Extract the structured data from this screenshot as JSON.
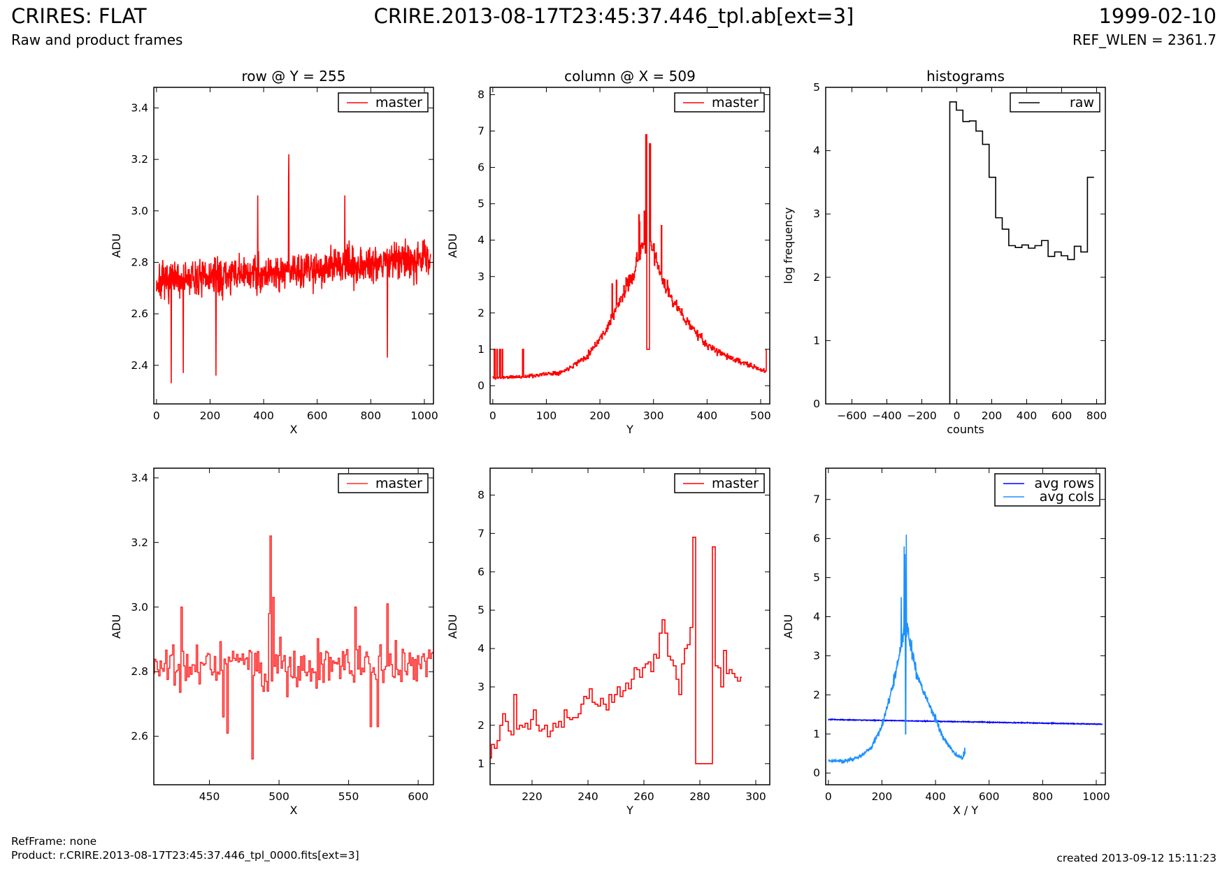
{
  "header": {
    "left_title": "CRIRES: FLAT",
    "left_subtitle": "Raw and product frames",
    "center_title": "CRIRE.2013-08-17T23:45:37.446_tpl.ab[ext=3]",
    "right_title": "1999-02-10",
    "right_subtitle": "REF_WLEN = 2361.7"
  },
  "footer": {
    "refframe": "RefFrame: none",
    "product": "Product: r.CRIRE.2013-08-17T23:45:37.446_tpl_0000.fits[ext=3]",
    "created": "created 2013-09-12 15:11:23"
  },
  "colors": {
    "red": "#ff0000",
    "black": "#000000",
    "blue": "#0000ff",
    "light_blue": "#1e90ff"
  },
  "chart_data": [
    {
      "id": "row-top",
      "type": "line",
      "title": "row @ Y = 255",
      "xlabel": "X",
      "ylabel": "ADU",
      "xlim": [
        -10,
        1034
      ],
      "ylim": [
        2.25,
        3.48
      ],
      "xticks": [
        0,
        200,
        400,
        600,
        800,
        1000
      ],
      "yticks": [
        2.4,
        2.6,
        2.8,
        3.0,
        3.2,
        3.4
      ],
      "ytick_decimals": 1,
      "legend_position": "top-right",
      "series": [
        {
          "name": "master",
          "color": "#ff0000",
          "width": 1.6,
          "step": false,
          "generator": {
            "x_start": 0,
            "x_end": 1023,
            "n": 1024,
            "base": 2.72,
            "trend": 0.1,
            "noise": 0.11,
            "seed": 7,
            "spikes": [
              [
                494,
                3.22
              ],
              [
                493,
                3.13
              ],
              [
                55,
                2.33
              ],
              [
                222,
                2.36
              ],
              [
                100,
                2.37
              ],
              [
                862,
                2.43
              ],
              [
                378,
                3.06
              ],
              [
                703,
                3.06
              ]
            ]
          }
        }
      ]
    },
    {
      "id": "col-top",
      "type": "line",
      "title": "column @ X = 509",
      "xlabel": "Y",
      "ylabel": "ADU",
      "xlim": [
        -5,
        517
      ],
      "ylim": [
        -0.5,
        8.2
      ],
      "xticks": [
        0,
        100,
        200,
        300,
        400,
        500
      ],
      "yticks": [
        0,
        1,
        2,
        3,
        4,
        5,
        6,
        7,
        8
      ],
      "ytick_decimals": 0,
      "legend_position": "top-right",
      "series": [
        {
          "name": "master",
          "color": "#ff0000",
          "width": 1.6,
          "step": true,
          "profile": [
            [
              0,
              0.22
            ],
            [
              60,
              0.25
            ],
            [
              130,
              0.38
            ],
            [
              175,
              0.8
            ],
            [
              210,
              1.5
            ],
            [
              240,
              2.4
            ],
            [
              265,
              3.2
            ],
            [
              280,
              3.9
            ],
            [
              290,
              3.7
            ],
            [
              300,
              3.6
            ],
            [
              320,
              2.8
            ],
            [
              350,
              2.0
            ],
            [
              400,
              1.1
            ],
            [
              450,
              0.72
            ],
            [
              511,
              0.38
            ]
          ],
          "generator": {
            "x_start": 0,
            "x_end": 511,
            "n": 512,
            "noise_rel": 0.1,
            "noise_abs": 0.05,
            "seed": 11,
            "spikes": [
              [
                3,
                1.0
              ],
              [
                4,
                1.0
              ],
              [
                8,
                1.0
              ],
              [
                13,
                1.0
              ],
              [
                14,
                1.0
              ],
              [
                18,
                1.0
              ],
              [
                56,
                1.0
              ],
              [
                57,
                1.0
              ],
              [
                223,
                2.8
              ],
              [
                231,
                2.9
              ],
              [
                273,
                4.7
              ],
              [
                274,
                4.5
              ],
              [
                283,
                4.8
              ],
              [
                286,
                6.9
              ],
              [
                287,
                6.9
              ],
              [
                288,
                1.0
              ],
              [
                289,
                1.0
              ],
              [
                290,
                1.0
              ],
              [
                291,
                1.0
              ],
              [
                292,
                1.0
              ],
              [
                293,
                6.65
              ],
              [
                294,
                6.65
              ],
              [
                300,
                3.9
              ],
              [
                301,
                3.9
              ],
              [
                315,
                4.4
              ],
              [
                511,
                1.0
              ]
            ]
          }
        }
      ]
    },
    {
      "id": "hist-top",
      "type": "histogram",
      "title": "histograms",
      "xlabel": "counts",
      "ylabel": "log frequency",
      "xlim": [
        -750,
        850
      ],
      "ylim": [
        0,
        5
      ],
      "xticks": [
        -600,
        -400,
        -200,
        0,
        200,
        400,
        600,
        800
      ],
      "yticks": [
        0,
        1,
        2,
        3,
        4,
        5
      ],
      "ytick_decimals": 0,
      "legend_position": "top-right",
      "series": [
        {
          "name": "raw",
          "color": "#000000",
          "width": 1.6,
          "bin_start": -40,
          "bin_width": 37.5,
          "values": [
            4.77,
            4.64,
            4.46,
            4.47,
            4.31,
            4.1,
            3.58,
            2.94,
            2.76,
            2.5,
            2.47,
            2.51,
            2.46,
            2.5,
            2.58,
            2.33,
            2.4,
            2.34,
            2.28,
            2.49,
            2.4,
            3.58
          ]
        }
      ]
    },
    {
      "id": "row-zoom",
      "type": "line",
      "title": "",
      "xlabel": "X",
      "ylabel": "ADU",
      "xlim": [
        410,
        611
      ],
      "ylim": [
        2.45,
        3.43
      ],
      "xticks": [
        450,
        500,
        550,
        600
      ],
      "yticks": [
        2.6,
        2.8,
        3.0,
        3.2,
        3.4
      ],
      "ytick_decimals": 1,
      "legend_position": "top-right",
      "series": [
        {
          "name": "master",
          "color": "#ff2d2d",
          "width": 1.6,
          "step": true,
          "generator": {
            "x_start": 410,
            "x_end": 611,
            "n": 202,
            "base": 2.82,
            "trend": 0,
            "noise": 0.11,
            "seed": 21,
            "spikes": [
              [
                494,
                3.22
              ],
              [
                493,
                2.98
              ],
              [
                481,
                2.53
              ],
              [
                496,
                3.03
              ],
              [
                463,
                2.61
              ],
              [
                460,
                2.66
              ],
              [
                566,
                2.63
              ],
              [
                571,
                2.63
              ],
              [
                555,
                3.0
              ],
              [
                430,
                3.0
              ],
              [
                578,
                3.01
              ]
            ]
          }
        }
      ]
    },
    {
      "id": "col-zoom",
      "type": "line",
      "title": "",
      "xlabel": "Y",
      "ylabel": "ADU",
      "xlim": [
        205,
        305
      ],
      "ylim": [
        0.45,
        8.7
      ],
      "xticks": [
        220,
        240,
        260,
        280,
        300
      ],
      "yticks": [
        1,
        2,
        3,
        4,
        5,
        6,
        7,
        8
      ],
      "ytick_decimals": 0,
      "legend_position": "top-right",
      "series": [
        {
          "name": "master",
          "color": "#ff0000",
          "width": 1.6,
          "step": true,
          "values_x_start": 205,
          "values": [
            1.15,
            1.5,
            1.4,
            1.6,
            2.0,
            2.3,
            2.1,
            1.85,
            1.75,
            2.8,
            1.9,
            2.0,
            1.95,
            2.05,
            1.9,
            2.15,
            2.4,
            2.0,
            1.85,
            1.9,
            2.0,
            1.7,
            1.85,
            2.05,
            1.95,
            2.1,
            1.95,
            2.4,
            2.2,
            2.15,
            2.2,
            2.2,
            2.3,
            2.55,
            2.75,
            2.7,
            2.95,
            2.6,
            2.55,
            2.5,
            2.7,
            2.55,
            2.4,
            2.8,
            2.6,
            2.8,
            3.0,
            2.75,
            2.9,
            3.1,
            2.95,
            3.2,
            3.5,
            3.45,
            3.25,
            3.5,
            3.6,
            3.65,
            3.4,
            3.85,
            3.75,
            4.4,
            4.75,
            4.4,
            3.8,
            3.7,
            3.55,
            3.2,
            2.8,
            3.6,
            4.0,
            4.1,
            4.55,
            6.9,
            1.0,
            1.0,
            1.0,
            1.0,
            1.0,
            1.0,
            6.65,
            3.55,
            3.5,
            3.0,
            3.95,
            3.35,
            3.45,
            3.35,
            3.25,
            3.15,
            3.25
          ]
        }
      ]
    },
    {
      "id": "avg-profiles",
      "type": "line",
      "title": "",
      "xlabel": "X / Y",
      "ylabel": "ADU",
      "xlim": [
        -10,
        1034
      ],
      "ylim": [
        -0.3,
        7.8
      ],
      "xticks": [
        0,
        200,
        400,
        600,
        800,
        1000
      ],
      "yticks": [
        0,
        1,
        2,
        3,
        4,
        5,
        6,
        7
      ],
      "ytick_decimals": 0,
      "legend_position": "top-right",
      "series": [
        {
          "name": "avg rows",
          "color": "#0000ff",
          "width": 1.6,
          "step": false,
          "generator": {
            "x_start": 0,
            "x_end": 1023,
            "n": 1024,
            "base": 1.37,
            "trend": -0.12,
            "noise": 0.015,
            "seed": 31,
            "spikes": []
          }
        },
        {
          "name": "avg cols",
          "color": "#1e90ff",
          "width": 1.6,
          "step": false,
          "profile": [
            [
              0,
              0.32
            ],
            [
              60,
              0.3
            ],
            [
              120,
              0.42
            ],
            [
              160,
              0.65
            ],
            [
              200,
              1.2
            ],
            [
              240,
              2.2
            ],
            [
              265,
              3.0
            ],
            [
              285,
              3.8
            ],
            [
              300,
              3.5
            ],
            [
              330,
              2.5
            ],
            [
              380,
              1.7
            ],
            [
              430,
              0.9
            ],
            [
              470,
              0.5
            ],
            [
              500,
              0.38
            ],
            [
              511,
              0.5
            ]
          ],
          "generator": {
            "x_start": 0,
            "x_end": 511,
            "n": 512,
            "noise_rel": 0.09,
            "noise_abs": 0.03,
            "seed": 41,
            "spikes": [
              [
                272,
                4.5
              ],
              [
                283,
                5.8
              ],
              [
                286,
                5.6
              ],
              [
                291,
                6.1
              ],
              [
                288,
                1.0
              ],
              [
                289,
                1.0
              ],
              [
                505,
                0.55
              ],
              [
                509,
                0.65
              ]
            ]
          }
        }
      ]
    }
  ]
}
